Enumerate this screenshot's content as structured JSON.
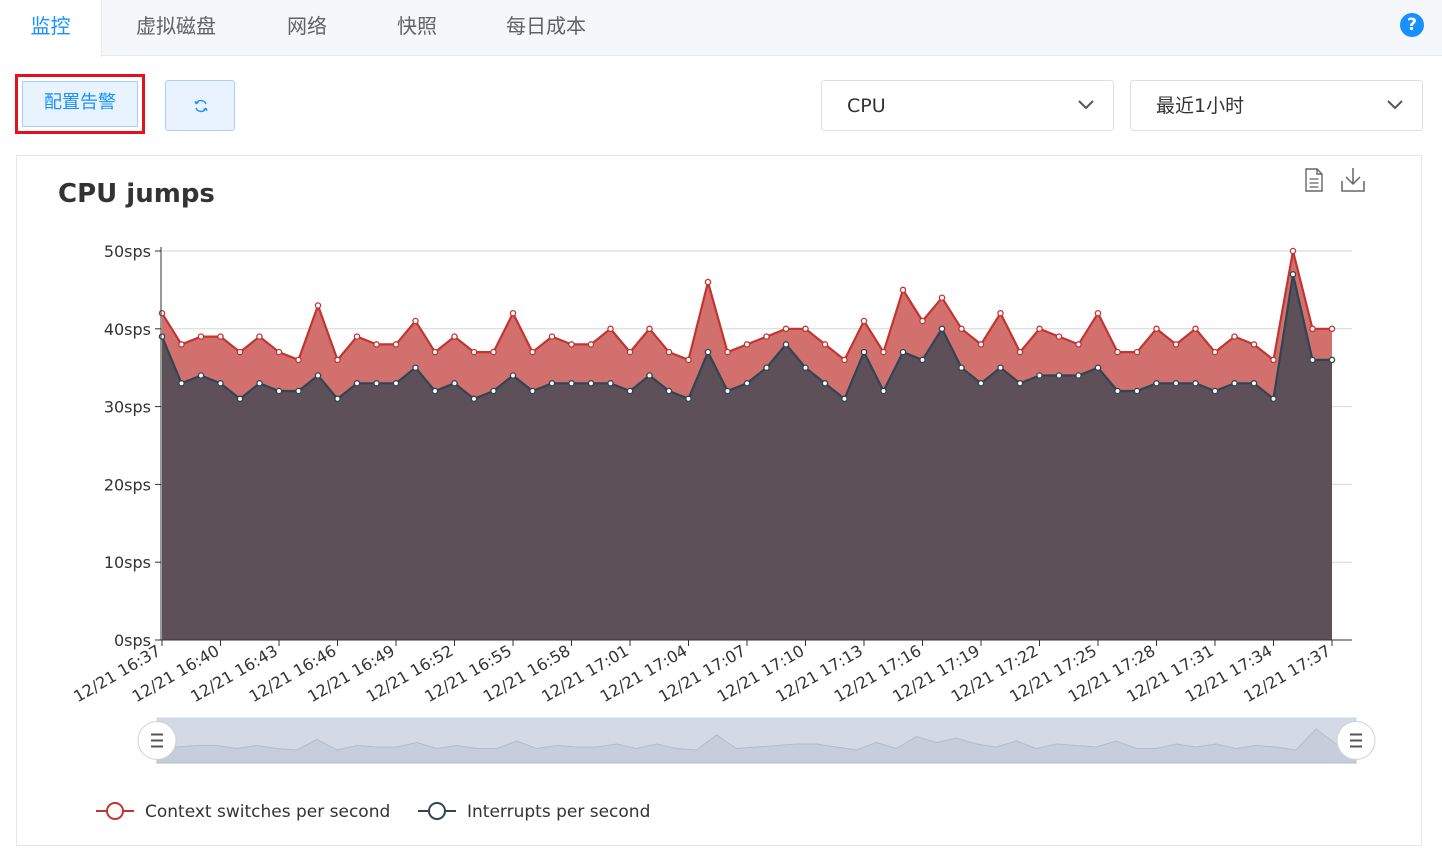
{
  "tabs": [
    {
      "label": "监控",
      "active": true
    },
    {
      "label": "虚拟磁盘",
      "active": false
    },
    {
      "label": "网络",
      "active": false
    },
    {
      "label": "快照",
      "active": false
    },
    {
      "label": "每日成本",
      "active": false
    }
  ],
  "help": {
    "label": "?"
  },
  "toolbar": {
    "alarm_label": "配置告警",
    "refresh_icon": "refresh-icon",
    "metric_select": {
      "value": "CPU"
    },
    "range_select": {
      "value": "最近1小时"
    }
  },
  "colors": {
    "accent": "#1890ff",
    "highlight_border": "#e0121b",
    "context_series": "#c23531",
    "interrupt_series": "#2f4554"
  },
  "chart_data": {
    "type": "area",
    "title": "CPU jumps",
    "y_ticks": [
      "0sps",
      "10sps",
      "20sps",
      "30sps",
      "40sps",
      "50sps"
    ],
    "ylim": [
      0,
      50
    ],
    "x_tick_labels": [
      "12/21 16:37",
      "12/21 16:40",
      "12/21 16:43",
      "12/21 16:46",
      "12/21 16:49",
      "12/21 16:52",
      "12/21 16:55",
      "12/21 16:58",
      "12/21 17:01",
      "12/21 17:04",
      "12/21 17:07",
      "12/21 17:10",
      "12/21 17:13",
      "12/21 17:16",
      "12/21 17:19",
      "12/21 17:22",
      "12/21 17:25",
      "12/21 17:28",
      "12/21 17:31",
      "12/21 17:34",
      "12/21 17:37"
    ],
    "stacked": false,
    "grid": true,
    "legend_position": "bottom-left",
    "series": [
      {
        "name": "Context switches per second",
        "color": "#c23531",
        "values": [
          42,
          38,
          39,
          39,
          37,
          39,
          37,
          36,
          43,
          36,
          39,
          38,
          38,
          41,
          37,
          39,
          37,
          37,
          42,
          37,
          39,
          38,
          38,
          40,
          37,
          40,
          37,
          36,
          46,
          37,
          38,
          39,
          40,
          40,
          38,
          36,
          41,
          37,
          45,
          41,
          44,
          40,
          38,
          42,
          37,
          40,
          39,
          38,
          42,
          37,
          37,
          40,
          38,
          40,
          37,
          39,
          38,
          36,
          50,
          40,
          40
        ]
      },
      {
        "name": "Interrupts per second",
        "color": "#2f4554",
        "values": [
          39,
          33,
          34,
          33,
          31,
          33,
          32,
          32,
          34,
          31,
          33,
          33,
          33,
          35,
          32,
          33,
          31,
          32,
          34,
          32,
          33,
          33,
          33,
          33,
          32,
          34,
          32,
          31,
          37,
          32,
          33,
          35,
          38,
          35,
          33,
          31,
          37,
          32,
          37,
          36,
          40,
          35,
          33,
          35,
          33,
          34,
          34,
          34,
          35,
          32,
          32,
          33,
          33,
          33,
          32,
          33,
          33,
          31,
          47,
          36,
          36
        ]
      }
    ]
  },
  "toolbox": {
    "data_view_icon": "document-icon",
    "save_icon": "download-icon"
  },
  "data_zoom": {
    "start_handle": "zoom-start-handle-icon",
    "end_handle": "zoom-end-handle-icon",
    "start_fraction": 0,
    "end_fraction": 1
  }
}
